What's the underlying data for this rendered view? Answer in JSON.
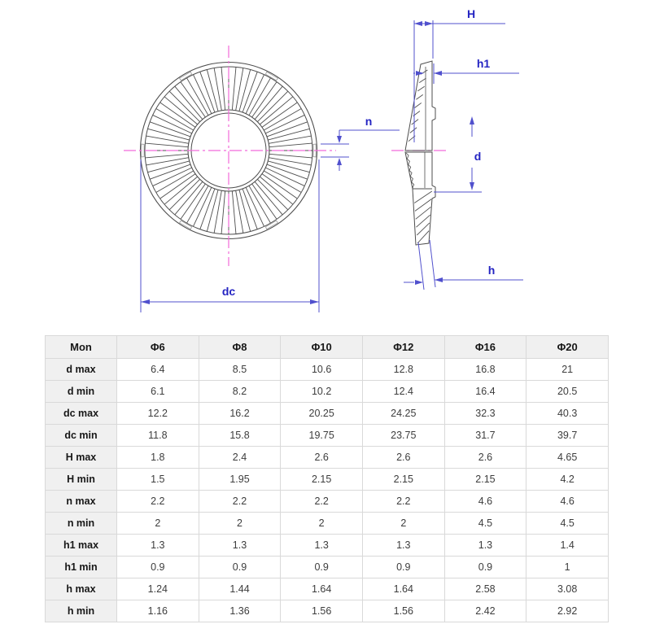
{
  "drawing": {
    "labels": {
      "H": "H",
      "h1": "h1",
      "d": "d",
      "h": "h",
      "n": "n",
      "dc": "dc"
    },
    "colors": {
      "dimension_line": "#5050cd",
      "dimension_text": "#2424c2",
      "centerline": "#f26ad9",
      "outline": "#4d4d4d"
    }
  },
  "table": {
    "columns": [
      "Mon",
      "Φ6",
      "Φ8",
      "Φ10",
      "Φ12",
      "Φ16",
      "Φ20"
    ],
    "rows": [
      {
        "label": "d max",
        "values": [
          "6.4",
          "8.5",
          "10.6",
          "12.8",
          "16.8",
          "21"
        ]
      },
      {
        "label": "d min",
        "values": [
          "6.1",
          "8.2",
          "10.2",
          "12.4",
          "16.4",
          "20.5"
        ]
      },
      {
        "label": "dc max",
        "values": [
          "12.2",
          "16.2",
          "20.25",
          "24.25",
          "32.3",
          "40.3"
        ]
      },
      {
        "label": "dc min",
        "values": [
          "11.8",
          "15.8",
          "19.75",
          "23.75",
          "31.7",
          "39.7"
        ]
      },
      {
        "label": "H max",
        "values": [
          "1.8",
          "2.4",
          "2.6",
          "2.6",
          "2.6",
          "4.65"
        ]
      },
      {
        "label": "H min",
        "values": [
          "1.5",
          "1.95",
          "2.15",
          "2.15",
          "2.15",
          "4.2"
        ]
      },
      {
        "label": "n max",
        "values": [
          "2.2",
          "2.2",
          "2.2",
          "2.2",
          "4.6",
          "4.6"
        ]
      },
      {
        "label": "n min",
        "values": [
          "2",
          "2",
          "2",
          "2",
          "4.5",
          "4.5"
        ]
      },
      {
        "label": "h1 max",
        "values": [
          "1.3",
          "1.3",
          "1.3",
          "1.3",
          "1.3",
          "1.4"
        ]
      },
      {
        "label": "h1 min",
        "values": [
          "0.9",
          "0.9",
          "0.9",
          "0.9",
          "0.9",
          "1"
        ]
      },
      {
        "label": "h max",
        "values": [
          "1.24",
          "1.44",
          "1.64",
          "1.64",
          "2.58",
          "3.08"
        ]
      },
      {
        "label": "h min",
        "values": [
          "1.16",
          "1.36",
          "1.56",
          "1.56",
          "2.42",
          "2.92"
        ]
      }
    ]
  }
}
